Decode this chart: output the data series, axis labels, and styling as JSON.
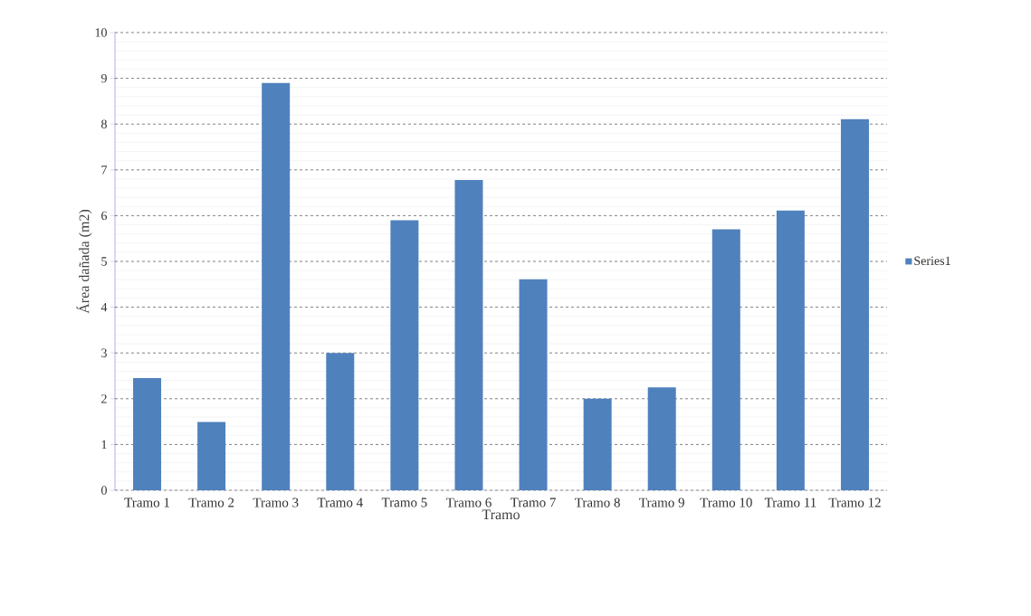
{
  "chart_data": {
    "type": "bar",
    "xlabel": "Tramo",
    "ylabel": "Área dañada (m2)",
    "categories": [
      "Tramo 1",
      "Tramo 2",
      "Tramo 3",
      "Tramo 4",
      "Tramo 5",
      "Tramo 6",
      "Tramo 7",
      "Tramo 8",
      "Tramo 9",
      "Tramo 10",
      "Tramo 11",
      "Tramo 12"
    ],
    "series": [
      {
        "name": "Series1",
        "color": "#4f81bd",
        "values": [
          2.45,
          1.49,
          8.9,
          3.0,
          5.9,
          6.78,
          4.61,
          2.0,
          2.25,
          5.7,
          6.11,
          8.11
        ]
      }
    ],
    "ylim": [
      0,
      10
    ],
    "yticks": [
      0,
      1,
      2,
      3,
      4,
      5,
      6,
      7,
      8,
      9,
      10
    ],
    "grid": "y",
    "legend": "right"
  }
}
